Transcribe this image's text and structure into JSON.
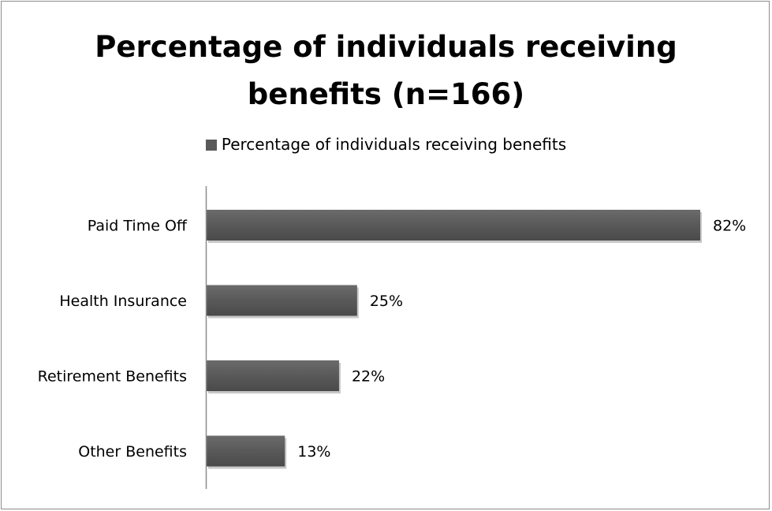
{
  "chart_data": {
    "type": "bar",
    "orientation": "horizontal",
    "title": "Percentage of individuals receiving benefits (n=166)",
    "title_lines": [
      "Percentage of individuals receiving",
      "benefits (n=166)"
    ],
    "categories": [
      "Paid Time Off",
      "Health Insurance",
      "Retirement Benefits",
      "Other Benefits"
    ],
    "series": [
      {
        "name": "Percentage of individuals receiving benefits",
        "values": [
          82,
          25,
          22,
          13
        ],
        "data_labels": [
          "82%",
          "25%",
          "22%",
          "13%"
        ],
        "color": "#595959"
      }
    ],
    "xlim": [
      0,
      82
    ],
    "grid": false,
    "legend_position": "top"
  }
}
